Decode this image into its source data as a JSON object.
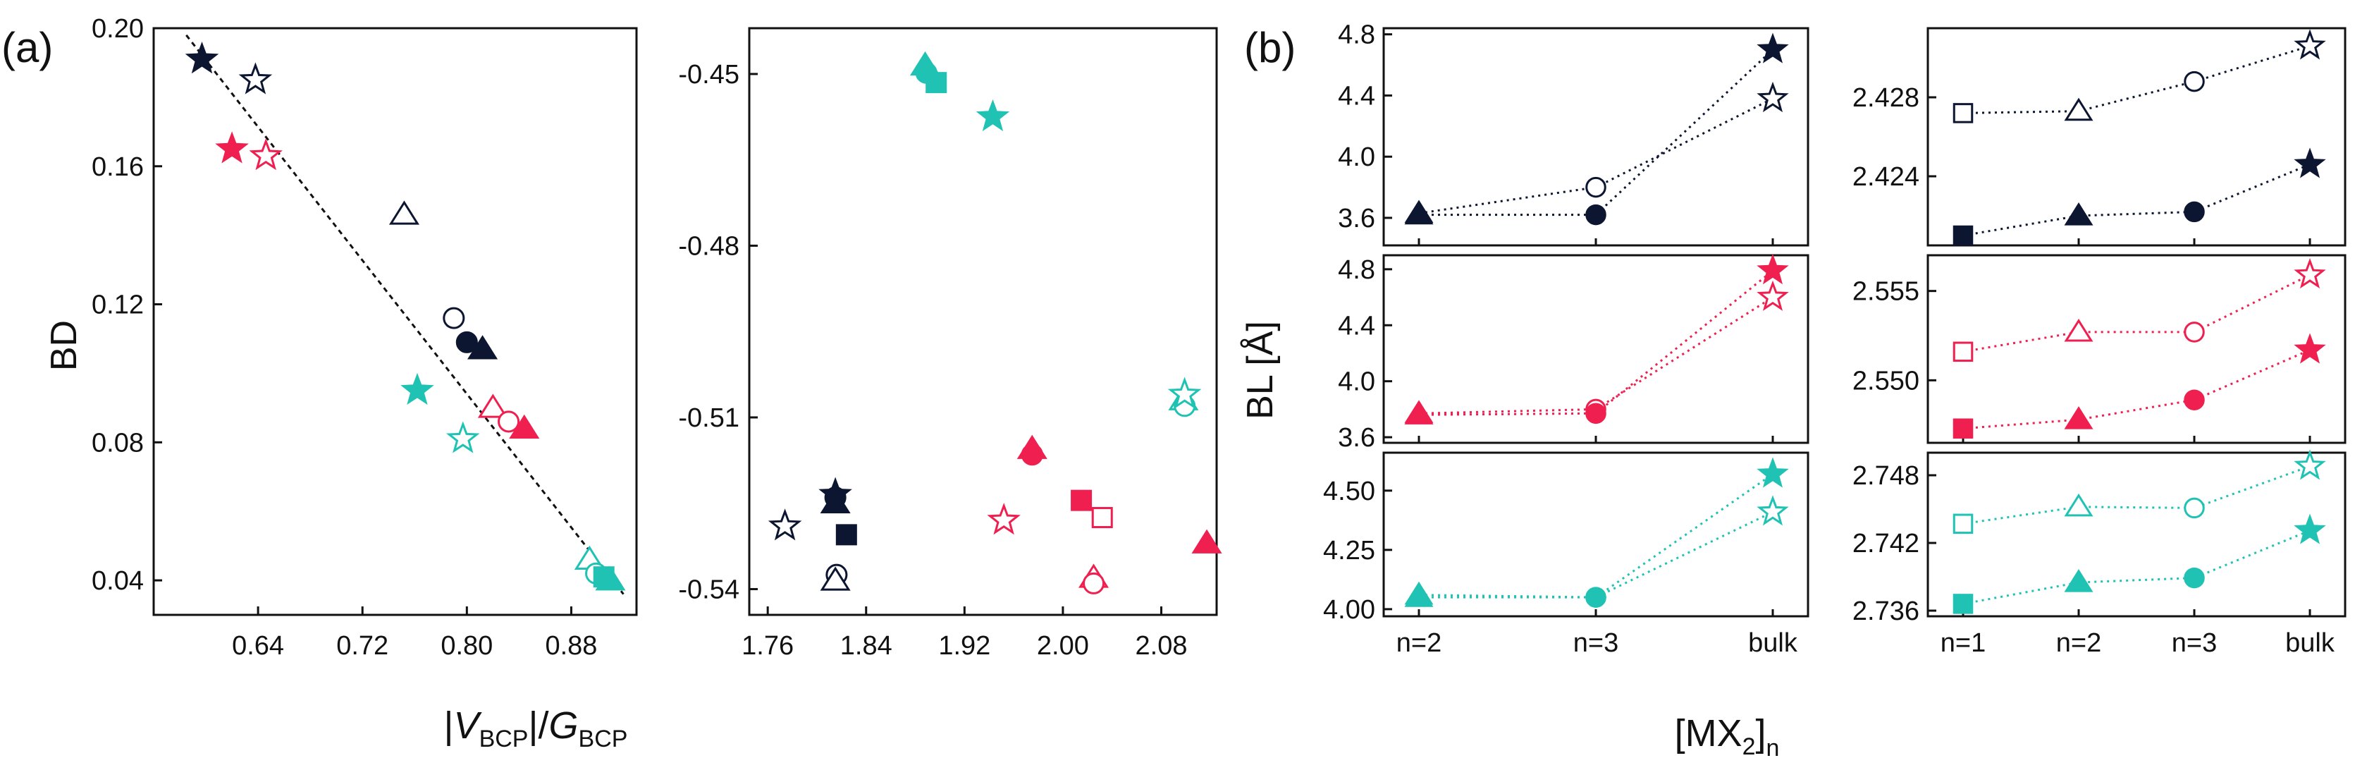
{
  "figure": {
    "panel_a_label": "(a)",
    "panel_b_label": "(b)"
  },
  "colors": {
    "black": "#0d1630",
    "red": "#ef1f4f",
    "teal": "#20c3b3"
  },
  "chart_data": [
    {
      "id": "a-left",
      "type": "scatter",
      "xlabel_parts": [
        "|",
        "V",
        "BCP",
        "|/",
        "G",
        "BCP"
      ],
      "ylabel": "BD",
      "xlim": [
        0.56,
        0.93
      ],
      "ylim": [
        0.03,
        0.2
      ],
      "xticks": [
        "0.64",
        "0.72",
        "0.80",
        "0.88"
      ],
      "xtick_values": [
        0.64,
        0.72,
        0.8,
        0.88
      ],
      "yticks": [
        "0.20",
        "0.16",
        "0.12",
        "0.08",
        "0.04"
      ],
      "ytick_values": [
        0.2,
        0.16,
        0.12,
        0.08,
        0.04
      ],
      "fit_line": [
        [
          0.585,
          0.198
        ],
        [
          0.92,
          0.036
        ]
      ],
      "points": [
        {
          "x": 0.597,
          "y": 0.191,
          "marker": "star",
          "color": "black",
          "filled": true
        },
        {
          "x": 0.638,
          "y": 0.185,
          "marker": "star",
          "color": "black",
          "filled": false
        },
        {
          "x": 0.62,
          "y": 0.165,
          "marker": "star",
          "color": "red",
          "filled": true
        },
        {
          "x": 0.646,
          "y": 0.163,
          "marker": "star",
          "color": "red",
          "filled": false
        },
        {
          "x": 0.752,
          "y": 0.146,
          "marker": "triangle",
          "color": "black",
          "filled": false
        },
        {
          "x": 0.79,
          "y": 0.116,
          "marker": "circle",
          "color": "black",
          "filled": false
        },
        {
          "x": 0.8,
          "y": 0.109,
          "marker": "circle",
          "color": "black",
          "filled": true
        },
        {
          "x": 0.812,
          "y": 0.107,
          "marker": "triangle",
          "color": "black",
          "filled": true
        },
        {
          "x": 0.762,
          "y": 0.095,
          "marker": "star",
          "color": "teal",
          "filled": true
        },
        {
          "x": 0.82,
          "y": 0.09,
          "marker": "triangle",
          "color": "red",
          "filled": false
        },
        {
          "x": 0.832,
          "y": 0.086,
          "marker": "circle",
          "color": "red",
          "filled": false
        },
        {
          "x": 0.844,
          "y": 0.084,
          "marker": "triangle",
          "color": "red",
          "filled": true
        },
        {
          "x": 0.797,
          "y": 0.081,
          "marker": "star",
          "color": "teal",
          "filled": false
        },
        {
          "x": 0.894,
          "y": 0.046,
          "marker": "triangle",
          "color": "teal",
          "filled": false
        },
        {
          "x": 0.899,
          "y": 0.042,
          "marker": "circle",
          "color": "teal",
          "filled": false
        },
        {
          "x": 0.905,
          "y": 0.041,
          "marker": "square",
          "color": "teal",
          "filled": true
        },
        {
          "x": 0.91,
          "y": 0.04,
          "marker": "triangle",
          "color": "teal",
          "filled": true
        }
      ]
    },
    {
      "id": "a-right",
      "type": "scatter",
      "xlim": [
        1.745,
        2.125
      ],
      "ylim": [
        -0.5445,
        -0.442
      ],
      "xticks": [
        "1.76",
        "1.84",
        "1.92",
        "2.00",
        "2.08"
      ],
      "xtick_values": [
        1.76,
        1.84,
        1.92,
        2.0,
        2.08
      ],
      "yticks": [
        "-0.45",
        "-0.48",
        "-0.51",
        "-0.54"
      ],
      "ytick_values": [
        -0.45,
        -0.48,
        -0.51,
        -0.54
      ],
      "points": [
        {
          "x": 1.888,
          "y": -0.4485,
          "marker": "triangle",
          "color": "teal",
          "filled": true
        },
        {
          "x": 1.889,
          "y": -0.4498,
          "marker": "circle",
          "color": "teal",
          "filled": true
        },
        {
          "x": 1.897,
          "y": -0.4515,
          "marker": "square",
          "color": "teal",
          "filled": true
        },
        {
          "x": 1.943,
          "y": -0.4575,
          "marker": "star",
          "color": "teal",
          "filled": true
        },
        {
          "x": 2.098,
          "y": -0.507,
          "marker": "triangle",
          "color": "teal",
          "filled": false
        },
        {
          "x": 2.099,
          "y": -0.508,
          "marker": "circle",
          "color": "teal",
          "filled": false
        },
        {
          "x": 2.099,
          "y": -0.506,
          "marker": "star",
          "color": "teal",
          "filled": false
        },
        {
          "x": 1.975,
          "y": -0.5155,
          "marker": "triangle",
          "color": "red",
          "filled": true
        },
        {
          "x": 1.975,
          "y": -0.5165,
          "marker": "circle",
          "color": "red",
          "filled": true
        },
        {
          "x": 2.015,
          "y": -0.5245,
          "marker": "square",
          "color": "red",
          "filled": true
        },
        {
          "x": 2.032,
          "y": -0.5275,
          "marker": "square",
          "color": "red",
          "filled": false
        },
        {
          "x": 1.952,
          "y": -0.528,
          "marker": "star",
          "color": "red",
          "filled": false
        },
        {
          "x": 2.117,
          "y": -0.532,
          "marker": "triangle",
          "color": "red",
          "filled": true
        },
        {
          "x": 2.025,
          "y": -0.538,
          "marker": "triangle",
          "color": "red",
          "filled": false
        },
        {
          "x": 2.025,
          "y": -0.539,
          "marker": "circle",
          "color": "red",
          "filled": false
        },
        {
          "x": 1.815,
          "y": -0.525,
          "marker": "triangle",
          "color": "black",
          "filled": true
        },
        {
          "x": 1.815,
          "y": -0.524,
          "marker": "circle",
          "color": "black",
          "filled": true
        },
        {
          "x": 1.815,
          "y": -0.5235,
          "marker": "star",
          "color": "black",
          "filled": true
        },
        {
          "x": 1.824,
          "y": -0.5305,
          "marker": "square",
          "color": "black",
          "filled": true
        },
        {
          "x": 1.774,
          "y": -0.529,
          "marker": "star",
          "color": "black",
          "filled": false
        },
        {
          "x": 1.816,
          "y": -0.5375,
          "marker": "circle",
          "color": "black",
          "filled": false
        },
        {
          "x": 1.815,
          "y": -0.5385,
          "marker": "triangle",
          "color": "black",
          "filled": false
        }
      ]
    },
    {
      "id": "b-ylabel",
      "type": "label",
      "ylabel": "BL [Å]",
      "xlabel_parts": [
        "[MX",
        "2",
        "]",
        "n"
      ]
    },
    {
      "id": "b-left",
      "type": "line",
      "categories": [
        "n=2",
        "n=3",
        "bulk"
      ],
      "subplots": [
        {
          "color": "black",
          "ylim": [
            3.42,
            4.84
          ],
          "yticks": [
            "4.8",
            "4.4",
            "4.0",
            "3.6"
          ],
          "ytick_values": [
            4.8,
            4.4,
            4.0,
            3.6
          ],
          "series": [
            {
              "name": "open",
              "values": [
                3.63,
                3.8,
                4.38
              ],
              "markers": [
                "triangle",
                "circle",
                "star"
              ],
              "filled": false
            },
            {
              "name": "filled",
              "values": [
                3.62,
                3.62,
                4.7
              ],
              "markers": [
                "triangle",
                "circle",
                "star"
              ],
              "filled": true
            }
          ]
        },
        {
          "color": "red",
          "ylim": [
            3.56,
            4.9
          ],
          "yticks": [
            "4.8",
            "4.4",
            "4.0",
            "3.6"
          ],
          "ytick_values": [
            4.8,
            4.4,
            4.0,
            3.6
          ],
          "series": [
            {
              "name": "open",
              "values": [
                3.77,
                3.8,
                4.6
              ],
              "markers": [
                "triangle",
                "circle",
                "star"
              ],
              "filled": false
            },
            {
              "name": "filled",
              "values": [
                3.76,
                3.77,
                4.79
              ],
              "markers": [
                "triangle",
                "circle",
                "star"
              ],
              "filled": true
            }
          ]
        },
        {
          "color": "teal",
          "ylim": [
            3.97,
            4.66
          ],
          "yticks": [
            "4.50",
            "4.25",
            "4.00"
          ],
          "ytick_values": [
            4.5,
            4.25,
            4.0
          ],
          "series": [
            {
              "name": "open",
              "values": [
                4.06,
                4.05,
                4.41
              ],
              "markers": [
                "triangle",
                "circle",
                "star"
              ],
              "filled": false
            },
            {
              "name": "filled",
              "values": [
                4.05,
                4.05,
                4.57
              ],
              "markers": [
                "triangle",
                "circle",
                "star"
              ],
              "filled": true
            }
          ]
        }
      ]
    },
    {
      "id": "b-right",
      "type": "line",
      "categories": [
        "n=1",
        "n=2",
        "n=3",
        "bulk"
      ],
      "subplots": [
        {
          "color": "black",
          "ylim": [
            2.4205,
            2.4315
          ],
          "yticks": [
            "2.428",
            "2.424"
          ],
          "ytick_values": [
            2.428,
            2.424
          ],
          "series": [
            {
              "name": "open",
              "values": [
                2.4272,
                2.4273,
                2.4288,
                2.4306
              ],
              "markers": [
                "square",
                "triangle",
                "circle",
                "star"
              ],
              "filled": false
            },
            {
              "name": "filled",
              "values": [
                2.421,
                2.422,
                2.4222,
                2.4246
              ],
              "markers": [
                "square",
                "triangle",
                "circle",
                "star"
              ],
              "filled": true
            }
          ]
        },
        {
          "color": "red",
          "ylim": [
            2.5465,
            2.557
          ],
          "yticks": [
            "2.555",
            "2.550"
          ],
          "ytick_values": [
            2.555,
            2.55
          ],
          "series": [
            {
              "name": "open",
              "values": [
                2.5516,
                2.5527,
                2.5527,
                2.5559
              ],
              "markers": [
                "square",
                "triangle",
                "circle",
                "star"
              ],
              "filled": false
            },
            {
              "name": "filled",
              "values": [
                2.5473,
                2.5478,
                2.5489,
                2.5517
              ],
              "markers": [
                "square",
                "triangle",
                "circle",
                "star"
              ],
              "filled": true
            }
          ]
        },
        {
          "color": "teal",
          "ylim": [
            2.7355,
            2.75
          ],
          "yticks": [
            "2.748",
            "2.742",
            "2.736"
          ],
          "ytick_values": [
            2.748,
            2.742,
            2.736
          ],
          "series": [
            {
              "name": "open",
              "values": [
                2.7437,
                2.7452,
                2.7451,
                2.7488
              ],
              "markers": [
                "square",
                "triangle",
                "circle",
                "star"
              ],
              "filled": false
            },
            {
              "name": "filled",
              "values": [
                2.7366,
                2.7385,
                2.7389,
                2.7431
              ],
              "markers": [
                "square",
                "triangle",
                "circle",
                "star"
              ],
              "filled": true
            }
          ]
        }
      ]
    }
  ]
}
